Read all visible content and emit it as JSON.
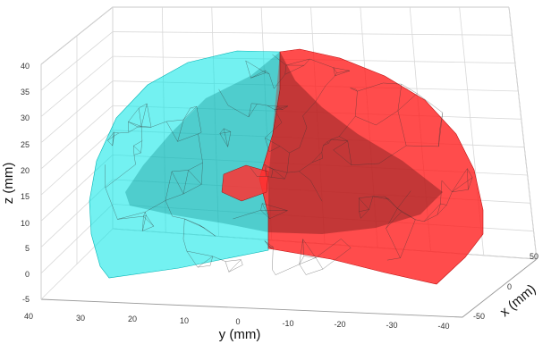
{
  "chart_data": {
    "type": "surface-3d",
    "xlabel": "x (mm)",
    "ylabel": "y (mm)",
    "zlabel": "z (mm)",
    "x_ticks": [
      "50",
      "0",
      "-50"
    ],
    "y_ticks": [
      "40",
      "30",
      "20",
      "10",
      "0",
      "-10",
      "-20",
      "-30",
      "-40"
    ],
    "z_ticks": [
      "-5",
      "0",
      "5",
      "10",
      "15",
      "20",
      "25",
      "30",
      "35",
      "40"
    ],
    "xlim": [
      -50,
      50
    ],
    "ylim": [
      -40,
      40
    ],
    "zlim": [
      -5,
      40
    ],
    "grid": true,
    "legend": "none",
    "surfaces": [
      {
        "color": "#00e6e6",
        "opacity": 0.55,
        "y_range": [
          0,
          40
        ]
      },
      {
        "color": "#ff1a1a",
        "opacity": 0.75,
        "y_range": [
          -40,
          0
        ]
      }
    ]
  }
}
